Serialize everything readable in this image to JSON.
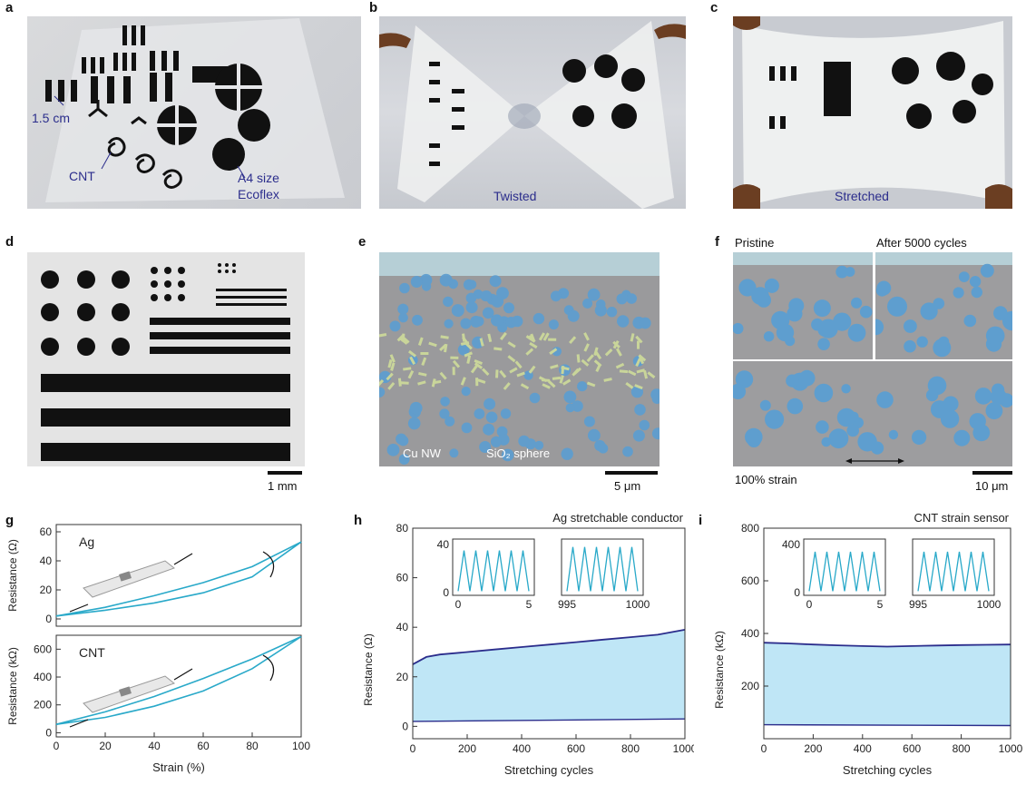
{
  "panels": {
    "a": {
      "letter": "a",
      "labels": {
        "dim": "1.5 cm",
        "cnt": "CNT",
        "size_line1": "A4 size",
        "size_line2": "Ecoflex"
      }
    },
    "b": {
      "letter": "b",
      "caption": "Twisted"
    },
    "c": {
      "letter": "c",
      "caption": "Stretched"
    },
    "d": {
      "letter": "d",
      "scale": "1 mm"
    },
    "e": {
      "letter": "e",
      "labels": {
        "nw": "Cu NW",
        "sphere": "SiO₂ sphere"
      },
      "scale": "5 μm"
    },
    "f": {
      "letter": "f",
      "labels": {
        "pristine": "Pristine",
        "after": "After 5000 cycles",
        "strain": "100% strain"
      },
      "scale": "10 μm"
    },
    "g": {
      "letter": "g"
    },
    "h": {
      "letter": "h"
    },
    "i": {
      "letter": "i"
    }
  },
  "chart_data": [
    {
      "id": "g-ag",
      "type": "line",
      "title": "",
      "series_label": "Ag",
      "xlabel": "",
      "ylabel": "Resistance (Ω)",
      "xlim": [
        0,
        100
      ],
      "ylim": [
        -5,
        65
      ],
      "yticks": [
        0,
        20,
        40,
        60
      ],
      "series": [
        {
          "x": [
            0,
            20,
            40,
            60,
            80,
            100
          ],
          "values": [
            2,
            8,
            16,
            25,
            36,
            53
          ]
        },
        {
          "x": [
            0,
            20,
            40,
            60,
            80,
            100
          ],
          "values": [
            2,
            6,
            11,
            18,
            29,
            53
          ]
        }
      ],
      "color": "#29a9c9"
    },
    {
      "id": "g-cnt",
      "type": "line",
      "title": "",
      "series_label": "CNT",
      "xlabel": "Strain (%)",
      "ylabel": "Resistance (kΩ)",
      "xlim": [
        0,
        100
      ],
      "ylim": [
        -30,
        700
      ],
      "xticks": [
        0,
        20,
        40,
        60,
        80,
        100
      ],
      "yticks": [
        0,
        200,
        400,
        600
      ],
      "series": [
        {
          "x": [
            0,
            20,
            40,
            60,
            80,
            100
          ],
          "values": [
            60,
            150,
            260,
            390,
            530,
            690
          ]
        },
        {
          "x": [
            0,
            20,
            40,
            60,
            80,
            100
          ],
          "values": [
            60,
            110,
            190,
            300,
            460,
            690
          ]
        }
      ],
      "color": "#29a9c9"
    },
    {
      "id": "h",
      "type": "area",
      "title": "Ag stretchable conductor",
      "xlabel": "Stretching cycles",
      "ylabel": "Resistance (Ω)",
      "xlim": [
        0,
        1000
      ],
      "ylim": [
        -5,
        80
      ],
      "xticks": [
        0,
        200,
        400,
        600,
        800,
        1000
      ],
      "yticks": [
        0,
        20,
        40,
        60,
        80
      ],
      "series": [
        {
          "name": "",
          "x": [
            0,
            50,
            100,
            200,
            300,
            400,
            500,
            600,
            700,
            800,
            900,
            1000
          ],
          "values": [
            25,
            28,
            29,
            30,
            31,
            32,
            33,
            34,
            35,
            36,
            37,
            39
          ]
        },
        {
          "name": "",
          "x": [
            0,
            1000
          ],
          "values": [
            2,
            3
          ]
        }
      ],
      "insets": [
        {
          "xlim": [
            0,
            5
          ],
          "ylim": [
            0,
            40
          ],
          "xticks": [
            0,
            5
          ],
          "yticks": [
            0,
            40
          ],
          "peak": 35,
          "cycles": 6
        },
        {
          "xlim": [
            995,
            1000
          ],
          "ylim": [
            0,
            40
          ],
          "xticks": [
            995,
            1000
          ],
          "yticks": [],
          "peak": 38,
          "cycles": 6
        }
      ],
      "line_color": "#2b2d8c",
      "fill_color": "#bfe6f6",
      "inset_color": "#29a9c9"
    },
    {
      "id": "i",
      "type": "area",
      "title": "CNT strain sensor",
      "xlabel": "Stretching cycles",
      "ylabel": "Resistance (kΩ)",
      "xlim": [
        0,
        1000
      ],
      "ylim": [
        0,
        800
      ],
      "xticks": [
        0,
        200,
        400,
        600,
        800,
        1000
      ],
      "yticks": [
        200,
        400,
        600,
        800
      ],
      "series": [
        {
          "name": "",
          "x": [
            0,
            100,
            200,
            300,
            400,
            500,
            600,
            700,
            800,
            900,
            1000
          ],
          "values": [
            365,
            362,
            358,
            355,
            352,
            350,
            352,
            354,
            356,
            357,
            358
          ]
        },
        {
          "name": "",
          "x": [
            0,
            1000
          ],
          "values": [
            53,
            50
          ]
        }
      ],
      "insets": [
        {
          "xlim": [
            0,
            5
          ],
          "ylim": [
            0,
            400
          ],
          "xticks": [
            0,
            5
          ],
          "yticks": [
            0,
            400
          ],
          "peak": 340,
          "cycles": 6
        },
        {
          "xlim": [
            995,
            1000
          ],
          "ylim": [
            0,
            400
          ],
          "xticks": [
            995,
            1000
          ],
          "yticks": [],
          "peak": 340,
          "cycles": 6
        }
      ],
      "line_color": "#2b2d8c",
      "fill_color": "#bfe6f6",
      "inset_color": "#29a9c9"
    }
  ]
}
